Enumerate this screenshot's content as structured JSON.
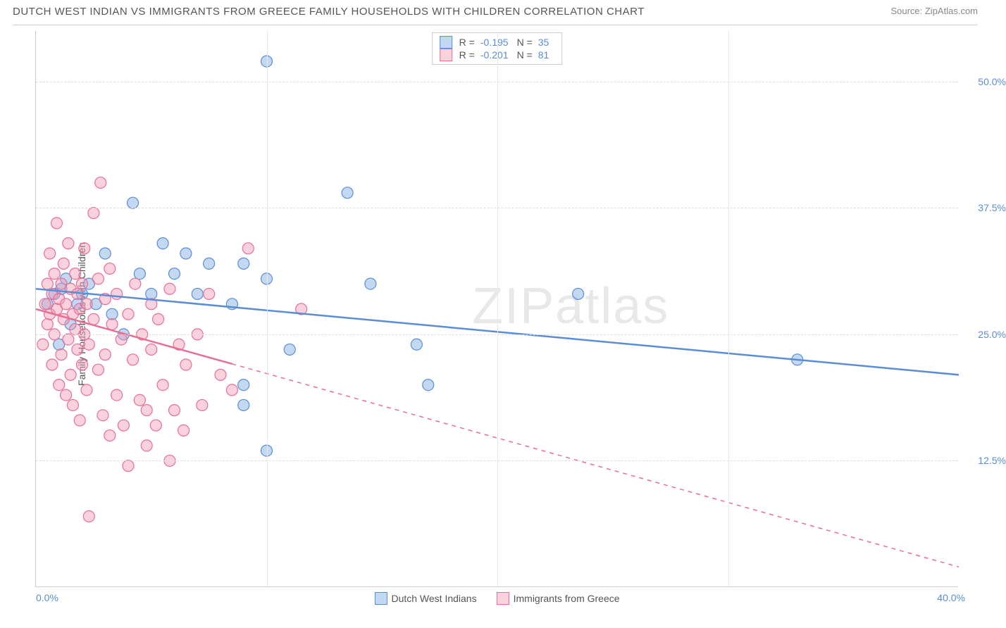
{
  "header": {
    "title": "DUTCH WEST INDIAN VS IMMIGRANTS FROM GREECE FAMILY HOUSEHOLDS WITH CHILDREN CORRELATION CHART",
    "source": "Source: ZipAtlas.com"
  },
  "watermark": "ZIPatlas",
  "chart": {
    "type": "scatter",
    "ylabel": "Family Households with Children",
    "xlim": [
      0,
      40
    ],
    "ylim": [
      0,
      55
    ],
    "x_ticks": [
      {
        "pos": 0,
        "label": "0.0%"
      },
      {
        "pos": 40,
        "label": "40.0%"
      }
    ],
    "x_minor_ticks": [
      10,
      20,
      30
    ],
    "y_ticks": [
      {
        "pos": 12.5,
        "label": "12.5%"
      },
      {
        "pos": 25.0,
        "label": "25.0%"
      },
      {
        "pos": 37.5,
        "label": "37.5%"
      },
      {
        "pos": 50.0,
        "label": "50.0%"
      }
    ],
    "tick_color": "#5b8dd6",
    "label_color": "#555555",
    "grid_color": "#dddddd",
    "background": "#ffffff",
    "marker_radius": 8,
    "marker_opacity": 0.55,
    "series": [
      {
        "name": "Dutch West Indians",
        "color": "#7aa8e0",
        "fill": "rgba(122,168,224,0.45)",
        "stroke": "#5b8dd6",
        "r_value": "-0.195",
        "n_value": "35",
        "trend": {
          "x1": 0,
          "y1": 29.5,
          "x2": 40,
          "y2": 21.0,
          "solid_until_x": 40
        },
        "points": [
          [
            0.5,
            28
          ],
          [
            0.8,
            29
          ],
          [
            1.0,
            24
          ],
          [
            1.1,
            29.5
          ],
          [
            1.3,
            30.5
          ],
          [
            1.5,
            26
          ],
          [
            1.8,
            28
          ],
          [
            2.0,
            29
          ],
          [
            2.3,
            30
          ],
          [
            2.6,
            28
          ],
          [
            3.0,
            33
          ],
          [
            3.3,
            27
          ],
          [
            3.8,
            25
          ],
          [
            4.2,
            38
          ],
          [
            4.5,
            31
          ],
          [
            5.0,
            29
          ],
          [
            5.5,
            34
          ],
          [
            6.0,
            31
          ],
          [
            6.5,
            33
          ],
          [
            7.0,
            29
          ],
          [
            7.5,
            32
          ],
          [
            8.5,
            28
          ],
          [
            9.0,
            18
          ],
          [
            9.0,
            32
          ],
          [
            9.0,
            20
          ],
          [
            10.0,
            30.5
          ],
          [
            10.0,
            13.5
          ],
          [
            10.0,
            52
          ],
          [
            11.0,
            23.5
          ],
          [
            13.5,
            39
          ],
          [
            14.5,
            30
          ],
          [
            16.5,
            24
          ],
          [
            17.0,
            20
          ],
          [
            23.5,
            29
          ],
          [
            33.0,
            22.5
          ]
        ]
      },
      {
        "name": "Immigrants from Greece",
        "color": "#f29cb5",
        "fill": "rgba(242,156,181,0.45)",
        "stroke": "#e76f94",
        "r_value": "-0.201",
        "n_value": "81",
        "trend": {
          "x1": 0,
          "y1": 27.5,
          "x2": 40,
          "y2": 2.0,
          "solid_until_x": 8.5
        },
        "points": [
          [
            0.3,
            24
          ],
          [
            0.4,
            28
          ],
          [
            0.5,
            30
          ],
          [
            0.5,
            26
          ],
          [
            0.6,
            27
          ],
          [
            0.6,
            33
          ],
          [
            0.7,
            22
          ],
          [
            0.7,
            29
          ],
          [
            0.8,
            25
          ],
          [
            0.8,
            31
          ],
          [
            0.9,
            27.5
          ],
          [
            0.9,
            36
          ],
          [
            1.0,
            20
          ],
          [
            1.0,
            28.5
          ],
          [
            1.1,
            23
          ],
          [
            1.1,
            30
          ],
          [
            1.2,
            26.5
          ],
          [
            1.2,
            32
          ],
          [
            1.3,
            19
          ],
          [
            1.3,
            28
          ],
          [
            1.4,
            24.5
          ],
          [
            1.4,
            34
          ],
          [
            1.5,
            21
          ],
          [
            1.5,
            29.5
          ],
          [
            1.6,
            27
          ],
          [
            1.6,
            18
          ],
          [
            1.7,
            25.5
          ],
          [
            1.7,
            31
          ],
          [
            1.8,
            23.5
          ],
          [
            1.8,
            29
          ],
          [
            1.9,
            16.5
          ],
          [
            1.9,
            27.5
          ],
          [
            2.0,
            22
          ],
          [
            2.0,
            30
          ],
          [
            2.1,
            25
          ],
          [
            2.1,
            33.5
          ],
          [
            2.2,
            19.5
          ],
          [
            2.2,
            28
          ],
          [
            2.3,
            24
          ],
          [
            2.3,
            7
          ],
          [
            2.5,
            37
          ],
          [
            2.5,
            26.5
          ],
          [
            2.7,
            21.5
          ],
          [
            2.7,
            30.5
          ],
          [
            2.8,
            40
          ],
          [
            2.9,
            17
          ],
          [
            3.0,
            28.5
          ],
          [
            3.0,
            23
          ],
          [
            3.2,
            31.5
          ],
          [
            3.2,
            15
          ],
          [
            3.3,
            26
          ],
          [
            3.5,
            19
          ],
          [
            3.5,
            29
          ],
          [
            3.7,
            24.5
          ],
          [
            3.8,
            16
          ],
          [
            4.0,
            27
          ],
          [
            4.0,
            12
          ],
          [
            4.2,
            22.5
          ],
          [
            4.3,
            30
          ],
          [
            4.5,
            18.5
          ],
          [
            4.6,
            25
          ],
          [
            4.8,
            14
          ],
          [
            4.8,
            17.5
          ],
          [
            5.0,
            28
          ],
          [
            5.0,
            23.5
          ],
          [
            5.2,
            16
          ],
          [
            5.3,
            26.5
          ],
          [
            5.5,
            20
          ],
          [
            5.8,
            12.5
          ],
          [
            5.8,
            29.5
          ],
          [
            6.0,
            17.5
          ],
          [
            6.2,
            24
          ],
          [
            6.4,
            15.5
          ],
          [
            6.5,
            22
          ],
          [
            7.0,
            25
          ],
          [
            7.2,
            18
          ],
          [
            7.5,
            29
          ],
          [
            8.0,
            21
          ],
          [
            8.5,
            19.5
          ],
          [
            9.2,
            33.5
          ],
          [
            11.5,
            27.5
          ]
        ]
      }
    ]
  }
}
